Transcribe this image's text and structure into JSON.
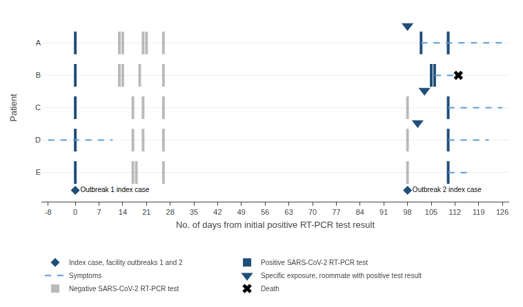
{
  "chart_data": {
    "type": "timeline",
    "xlabel": "No. of days from initial positive RT-PCR test result",
    "ylabel": "Patient",
    "categories": [
      "A",
      "B",
      "C",
      "D",
      "E"
    ],
    "xlim": [
      -10,
      128
    ],
    "xticks": [
      -8,
      0,
      7,
      14,
      21,
      28,
      35,
      42,
      49,
      56,
      63,
      70,
      77,
      84,
      91,
      98,
      105,
      112,
      119,
      126
    ],
    "grid": true,
    "legend": "bottom",
    "series": [
      {
        "name": "Index case, facility outbreaks 1 and 2",
        "type": "scatter",
        "marker": "diamond",
        "color": "#1F4E79",
        "x": [
          0,
          98
        ],
        "labels": [
          "Outbreak 1 index case",
          "Outbreak 2 index case"
        ]
      },
      {
        "name": "Positive SARS-CoV-2 RT-PCR test",
        "type": "bar",
        "color": "#1F4E79",
        "values": [
          [
            0,
            102,
            110
          ],
          [
            0,
            105,
            106
          ],
          [
            0,
            110
          ],
          [
            0,
            110
          ],
          [
            0,
            110
          ]
        ]
      },
      {
        "name": "Symptoms",
        "type": "line",
        "line_style": "dash",
        "color": "#5B9BD5",
        "values": [
          [
            [
              102,
              126
            ]
          ],
          [
            [
              106,
              113
            ]
          ],
          [
            [
              110,
              126
            ]
          ],
          [
            [
              -8,
              11
            ],
            [
              110,
              122
            ]
          ],
          [
            [
              110,
              116
            ]
          ]
        ]
      },
      {
        "name": "Specific exposure, roommate with positive test result",
        "type": "scatter",
        "marker": "triangle-down",
        "color": "#1F4E79",
        "values": [
          [
            98
          ],
          [],
          [
            103
          ],
          [
            101
          ],
          []
        ]
      },
      {
        "name": "Negative SARS-CoV-2 RT-PCR test",
        "type": "bar",
        "color": "#8C8C8C",
        "values": [
          [
            13,
            14,
            20,
            21,
            26,
            110
          ],
          [
            13,
            14,
            19,
            26
          ],
          [
            17,
            20,
            26,
            98
          ],
          [
            17,
            20,
            26,
            98
          ],
          [
            17,
            18,
            26,
            98
          ]
        ]
      },
      {
        "name": "Death",
        "type": "scatter",
        "marker": "x",
        "color": "black",
        "values": [
          [],
          [
            113
          ],
          [],
          [],
          []
        ]
      }
    ]
  }
}
